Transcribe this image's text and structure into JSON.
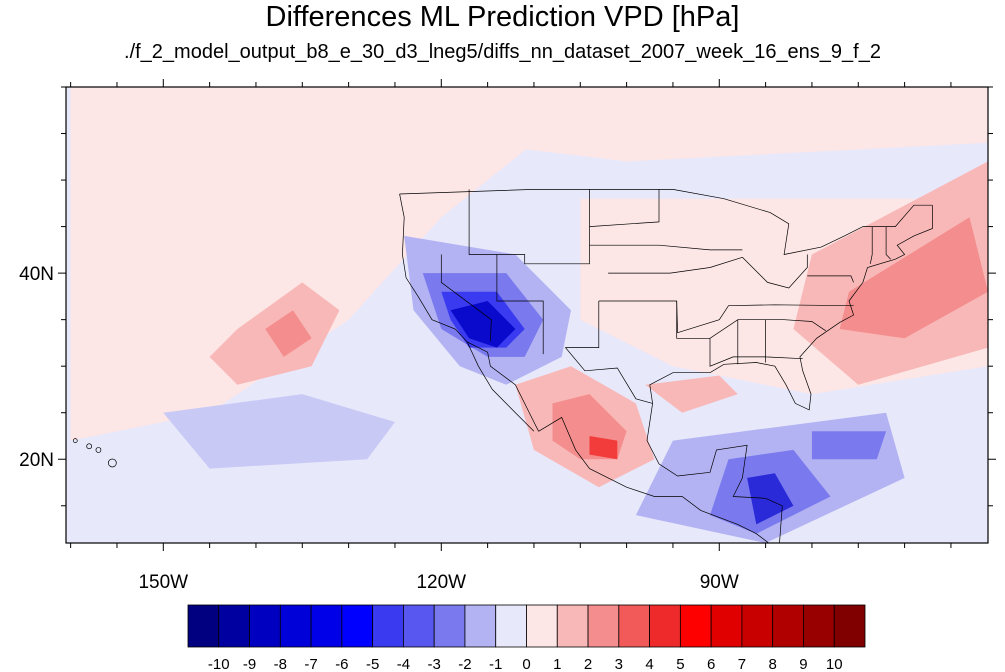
{
  "title": "Differences ML Prediction VPD [hPa]",
  "subtitle": "./f_2_model_output_b8_e_30_d3_lneg5/diffs_nn_dataset_2007_week_16_ens_9_f_2",
  "map": {
    "projection": "cylindrical-equidistant",
    "lon_range": [
      -160.5,
      -61
    ],
    "lat_range": [
      11,
      60
    ],
    "lon_labels": [
      {
        "lon": -150,
        "text": "150W"
      },
      {
        "lon": -120,
        "text": "120W"
      },
      {
        "lon": -90,
        "text": "90W"
      }
    ],
    "lat_labels": [
      {
        "lat": 40,
        "text": "40N"
      },
      {
        "lat": 20,
        "text": "20N"
      }
    ],
    "background_color": "#e8e8fb",
    "regions": [
      {
        "name": "pacific-warm-band",
        "color": "#fce6e6",
        "points": [
          [
            -160,
            58
          ],
          [
            -105,
            58
          ],
          [
            -120,
            46
          ],
          [
            -130,
            35
          ],
          [
            -145,
            25
          ],
          [
            -160,
            22
          ]
        ]
      },
      {
        "name": "northeast-pacific-positive",
        "color": "#fce6e6",
        "points": [
          [
            -160,
            60
          ],
          [
            -61,
            60
          ],
          [
            -61,
            54
          ],
          [
            -100,
            52
          ],
          [
            -125,
            55
          ],
          [
            -160,
            56
          ]
        ]
      },
      {
        "name": "eastern-us-positive",
        "color": "#fce6e6",
        "points": [
          [
            -105,
            48
          ],
          [
            -61,
            48
          ],
          [
            -61,
            30
          ],
          [
            -80,
            27
          ],
          [
            -95,
            30
          ],
          [
            -105,
            35
          ]
        ]
      },
      {
        "name": "atlantic-positive-1",
        "color": "#f9b8b8",
        "points": [
          [
            -80,
            42
          ],
          [
            -61,
            52
          ],
          [
            -61,
            32
          ],
          [
            -75,
            28
          ],
          [
            -82,
            34
          ]
        ]
      },
      {
        "name": "atlantic-positive-2",
        "color": "#f48d8d",
        "points": [
          [
            -76,
            38
          ],
          [
            -63,
            46
          ],
          [
            -61,
            38
          ],
          [
            -70,
            33
          ],
          [
            -77,
            34
          ]
        ]
      },
      {
        "name": "hawaii-positive-1",
        "color": "#f9b8b8",
        "points": [
          [
            -142,
            34
          ],
          [
            -135,
            39
          ],
          [
            -131,
            36
          ],
          [
            -134,
            30
          ],
          [
            -142,
            28
          ],
          [
            -145,
            31
          ]
        ]
      },
      {
        "name": "hawaii-positive-2",
        "color": "#f48d8d",
        "points": [
          [
            -139,
            34
          ],
          [
            -136,
            36
          ],
          [
            -134,
            33
          ],
          [
            -137,
            31
          ]
        ]
      },
      {
        "name": "mexico-positive-1",
        "color": "#f9b8b8",
        "points": [
          [
            -112,
            28
          ],
          [
            -106,
            30
          ],
          [
            -99,
            26
          ],
          [
            -97,
            20
          ],
          [
            -103,
            17
          ],
          [
            -110,
            21
          ]
        ]
      },
      {
        "name": "mexico-positive-2",
        "color": "#f48d8d",
        "points": [
          [
            -108,
            26
          ],
          [
            -104,
            27
          ],
          [
            -100,
            23
          ],
          [
            -101,
            20
          ],
          [
            -105,
            20
          ],
          [
            -108,
            22
          ]
        ]
      },
      {
        "name": "mexico-positive-3",
        "color": "#f23c3c",
        "points": [
          [
            -104,
            22.5
          ],
          [
            -101,
            22
          ],
          [
            -101,
            20
          ],
          [
            -104,
            20.5
          ]
        ]
      },
      {
        "name": "western-us-negative-1",
        "color": "#b3b3f3",
        "points": [
          [
            -124,
            44
          ],
          [
            -112,
            42
          ],
          [
            -106,
            36
          ],
          [
            -107,
            31
          ],
          [
            -113,
            28
          ],
          [
            -118,
            30
          ],
          [
            -123,
            36
          ]
        ]
      },
      {
        "name": "western-us-negative-2",
        "color": "#7a7aee",
        "points": [
          [
            -122,
            40
          ],
          [
            -113,
            40
          ],
          [
            -109,
            35
          ],
          [
            -111,
            31
          ],
          [
            -115,
            31
          ],
          [
            -120,
            34
          ]
        ]
      },
      {
        "name": "western-us-negative-3",
        "color": "#3a3af0",
        "points": [
          [
            -120,
            38
          ],
          [
            -114,
            38
          ],
          [
            -111,
            34
          ],
          [
            -113,
            32
          ],
          [
            -117,
            32
          ],
          [
            -119,
            35
          ]
        ]
      },
      {
        "name": "western-us-negative-4",
        "color": "#0a0acc",
        "points": [
          [
            -119,
            36
          ],
          [
            -115,
            37
          ],
          [
            -112,
            34
          ],
          [
            -114,
            32
          ],
          [
            -117,
            33
          ]
        ]
      },
      {
        "name": "central-america-negative-1",
        "color": "#b3b3f3",
        "points": [
          [
            -95,
            22
          ],
          [
            -72,
            25
          ],
          [
            -70,
            18
          ],
          [
            -85,
            11
          ],
          [
            -99,
            14
          ]
        ]
      },
      {
        "name": "central-america-negative-2",
        "color": "#7a7aee",
        "points": [
          [
            -89,
            20
          ],
          [
            -82,
            21
          ],
          [
            -78,
            16
          ],
          [
            -86,
            12
          ],
          [
            -91,
            14
          ]
        ]
      },
      {
        "name": "central-america-negative-3",
        "color": "#2a2ad8",
        "points": [
          [
            -87,
            18
          ],
          [
            -84,
            18.5
          ],
          [
            -82,
            15
          ],
          [
            -86,
            13
          ]
        ]
      },
      {
        "name": "caribbean-negative",
        "color": "#7a7aee",
        "points": [
          [
            -80,
            23
          ],
          [
            -72,
            23
          ],
          [
            -73,
            20
          ],
          [
            -80,
            20
          ]
        ]
      },
      {
        "name": "pacific-negative-patch",
        "color": "#c9c9f6",
        "points": [
          [
            -150,
            25
          ],
          [
            -135,
            27
          ],
          [
            -125,
            24
          ],
          [
            -128,
            20
          ],
          [
            -145,
            19
          ]
        ]
      },
      {
        "name": "gulf-positive",
        "color": "#f9b8b8",
        "points": [
          [
            -98,
            28
          ],
          [
            -90,
            29
          ],
          [
            -88,
            27
          ],
          [
            -94,
            25
          ]
        ]
      }
    ],
    "outline_color": "#000000"
  },
  "colorbar": {
    "colors": [
      "#000080",
      "#0000a0",
      "#0000c0",
      "#0000d8",
      "#0000e8",
      "#0000ff",
      "#3a3af0",
      "#5858f0",
      "#7a7aee",
      "#b3b3f3",
      "#e8e8fb",
      "#fce6e6",
      "#f9b8b8",
      "#f48d8d",
      "#f25a5a",
      "#ef2a2a",
      "#ff0000",
      "#e00000",
      "#c80000",
      "#b00000",
      "#980000",
      "#800000"
    ],
    "labels": [
      "-10",
      "-9",
      "-8",
      "-7",
      "-6",
      "-5",
      "-4",
      "-3",
      "-2",
      "-1",
      "0",
      "1",
      "2",
      "3",
      "4",
      "5",
      "6",
      "7",
      "8",
      "9",
      "10"
    ]
  }
}
